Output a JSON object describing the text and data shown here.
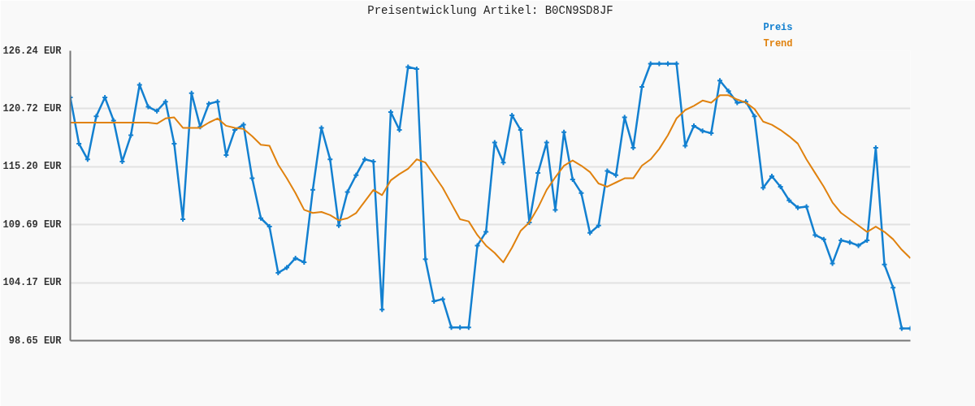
{
  "chart_data": {
    "type": "line",
    "title": "Preisentwicklung Artikel: B0CN9SD8JF",
    "categories": [
      null,
      null,
      null,
      null,
      null,
      null,
      null,
      null,
      null,
      null,
      null,
      null,
      null,
      null,
      null,
      null,
      null,
      null,
      null,
      null,
      null,
      null,
      null,
      null,
      null,
      null,
      null,
      null,
      null,
      null,
      null,
      null,
      null,
      null,
      null,
      null,
      null,
      null,
      null,
      null,
      null,
      null,
      null,
      null,
      null,
      null,
      null,
      null,
      null,
      null,
      null,
      null,
      null,
      null,
      null,
      null,
      null,
      null,
      null,
      null,
      null,
      null,
      null,
      null,
      null,
      null,
      null,
      null,
      null,
      null,
      null,
      null,
      null,
      null,
      null,
      null,
      null,
      null,
      null,
      null,
      null,
      null,
      null,
      null,
      null,
      null,
      null,
      null,
      null,
      null,
      null,
      null,
      null,
      null,
      null,
      null,
      null,
      null
    ],
    "series": [
      {
        "name": "Preis",
        "color": "#1380d0",
        "marker": "cross",
        "values": [
          121.8,
          117.4,
          115.9,
          120.0,
          121.8,
          119.6,
          115.7,
          118.2,
          123.0,
          120.9,
          120.5,
          121.4,
          117.4,
          110.2,
          122.2,
          119.0,
          121.2,
          121.4,
          116.3,
          118.7,
          119.2,
          114.1,
          110.3,
          109.5,
          105.1,
          105.6,
          106.5,
          106.1,
          113.0,
          118.9,
          115.9,
          109.6,
          112.8,
          114.4,
          115.9,
          115.7,
          101.6,
          120.4,
          118.7,
          124.7,
          124.5,
          106.4,
          102.4,
          102.6,
          99.9,
          99.9,
          99.9,
          107.7,
          109.0,
          117.5,
          115.6,
          120.1,
          118.7,
          109.9,
          114.6,
          117.5,
          111.1,
          118.5,
          114.0,
          112.7,
          108.9,
          109.6,
          114.8,
          114.4,
          119.9,
          117.0,
          122.8,
          125.0,
          125.0,
          125.0,
          125.0,
          117.2,
          119.1,
          118.6,
          118.4,
          123.4,
          122.4,
          121.3,
          121.4,
          120.0,
          113.2,
          114.3,
          113.3,
          112.0,
          111.3,
          111.4,
          108.7,
          108.3,
          106.0,
          108.2,
          108.0,
          107.7,
          108.2,
          117.0,
          105.9,
          103.7,
          99.8,
          99.8
        ]
      },
      {
        "name": "Trend",
        "color": "#e0820f",
        "marker": "none",
        "values": [
          119.4,
          119.4,
          119.4,
          119.4,
          119.4,
          119.4,
          119.4,
          119.4,
          119.4,
          119.4,
          119.3,
          119.8,
          119.9,
          118.9,
          118.9,
          118.9,
          119.4,
          119.8,
          119.1,
          118.9,
          118.8,
          118.1,
          117.3,
          117.2,
          115.4,
          114.1,
          112.7,
          111.1,
          110.8,
          110.9,
          110.6,
          110.1,
          110.3,
          110.8,
          111.9,
          113.0,
          112.5,
          113.9,
          114.5,
          115.0,
          115.9,
          115.6,
          114.4,
          113.2,
          111.7,
          110.2,
          110.0,
          108.7,
          107.7,
          107.0,
          106.1,
          107.5,
          109.1,
          109.9,
          111.3,
          113.0,
          114.2,
          115.3,
          115.8,
          115.3,
          114.7,
          113.6,
          113.3,
          113.7,
          114.1,
          114.1,
          115.3,
          115.9,
          116.9,
          118.2,
          119.8,
          120.6,
          121.0,
          121.5,
          121.3,
          122.0,
          122.0,
          121.6,
          121.3,
          120.7,
          119.5,
          119.2,
          118.7,
          118.1,
          117.4,
          115.9,
          114.6,
          113.3,
          111.8,
          110.8,
          110.2,
          109.6,
          109.0,
          109.5,
          109.0,
          108.3,
          107.3,
          106.5
        ]
      }
    ],
    "ylim": [
      98.65,
      126.24
    ],
    "yticks": [
      {
        "value": 98.65,
        "label": "98.65 EUR"
      },
      {
        "value": 104.17,
        "label": "104.17 EUR"
      },
      {
        "value": 109.69,
        "label": "109.69 EUR"
      },
      {
        "value": 115.2,
        "label": "115.20 EUR"
      },
      {
        "value": 120.72,
        "label": "120.72 EUR"
      },
      {
        "value": 126.24,
        "label": "126.24 EUR"
      }
    ],
    "grid": "y",
    "tick_labels": "y",
    "line_style": "solid"
  }
}
